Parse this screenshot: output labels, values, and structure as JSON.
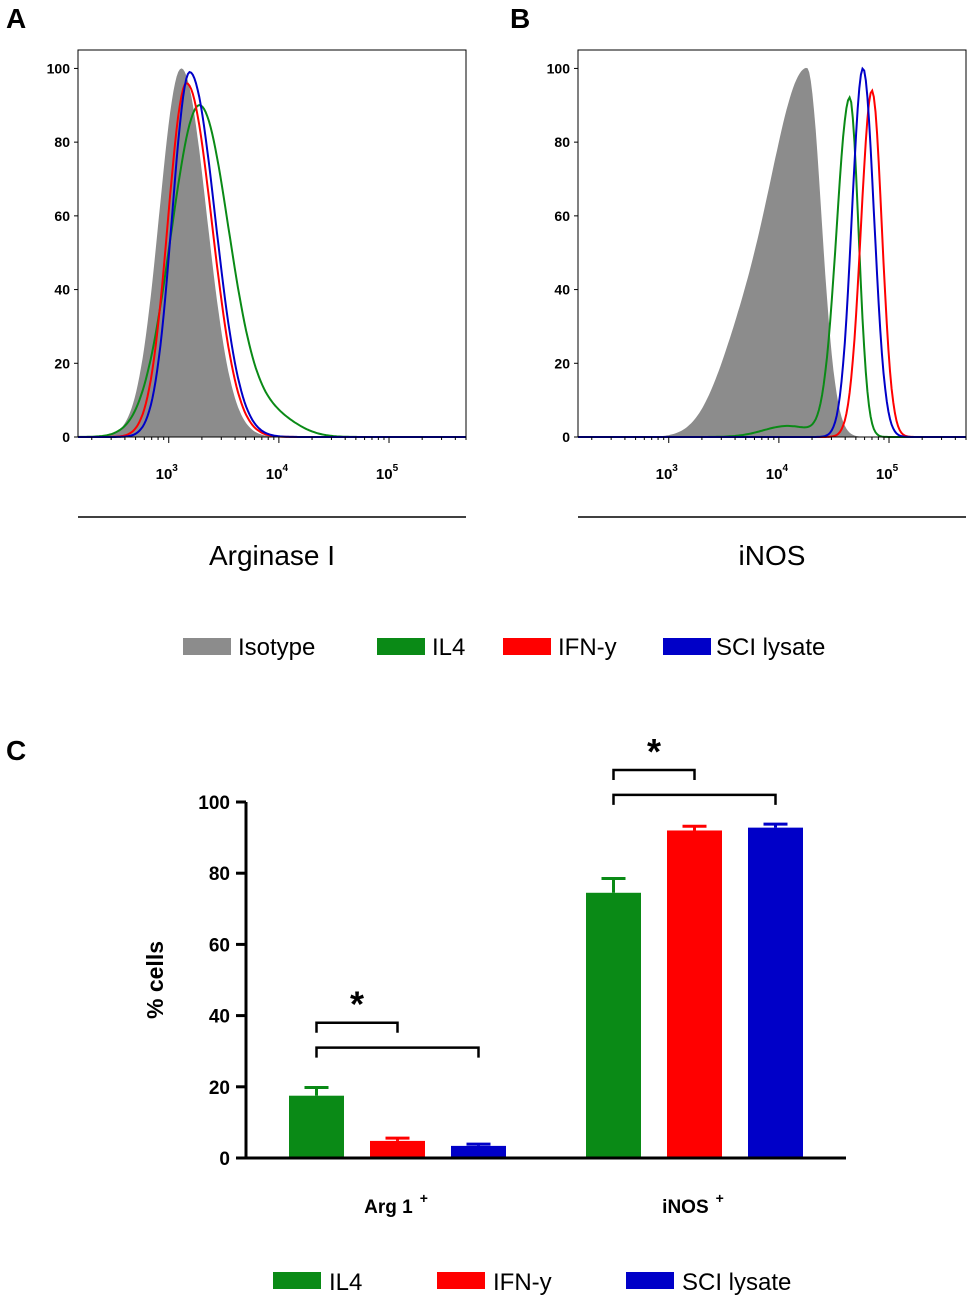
{
  "colors": {
    "isotype": "#8c8c8c",
    "il4": "#0a8a16",
    "ifn": "#ff0000",
    "sci": "#0000c8",
    "axis": "#000000"
  },
  "panels": {
    "a": {
      "letter": "A",
      "xlabel": "Arginase I"
    },
    "b": {
      "letter": "B",
      "xlabel": "iNOS"
    },
    "c": {
      "letter": "C"
    }
  },
  "histogram_legend": [
    {
      "key": "isotype",
      "label": "Isotype",
      "color": "#8c8c8c"
    },
    {
      "key": "il4",
      "label": "IL4",
      "color": "#0a8a16"
    },
    {
      "key": "ifn",
      "label": "IFN-y",
      "color": "#ff0000"
    },
    {
      "key": "sci",
      "label": "SCI lysate",
      "color": "#0000c8"
    }
  ],
  "bar_legend": [
    {
      "key": "il4",
      "label": "IL4",
      "color": "#0a8a16"
    },
    {
      "key": "ifn",
      "label": "IFN-y",
      "color": "#ff0000"
    },
    {
      "key": "sci",
      "label": "SCI lysate",
      "color": "#0000c8"
    }
  ],
  "chart_data": [
    {
      "panel": "A",
      "type": "area",
      "title": "",
      "xlabel": "Arginase I",
      "ylabel": "",
      "xscale": "log",
      "xlim": [
        150,
        500000
      ],
      "ylim": [
        0,
        105
      ],
      "yticks": [
        "0",
        "20",
        "40",
        "60",
        "80",
        "100"
      ],
      "xticks": [
        {
          "base": "10",
          "exp": "3",
          "value": 1000
        },
        {
          "base": "10",
          "exp": "4",
          "value": 10000
        },
        {
          "base": "10",
          "exp": "5",
          "value": 100000
        }
      ],
      "series": [
        {
          "name": "Isotype",
          "key": "isotype",
          "fill": true,
          "peak_x": 1300,
          "peak_y": 100,
          "spread_left": 0.2,
          "spread_right": 0.23
        },
        {
          "name": "IL4",
          "key": "il4",
          "fill": false,
          "peak_x": 1900,
          "peak_y": 90,
          "spread_left": 0.26,
          "spread_right": 0.27,
          "tail_x": 9000,
          "tail_y": 5
        },
        {
          "name": "IFN-y",
          "key": "ifn",
          "fill": false,
          "peak_x": 1450,
          "peak_y": 96,
          "spread_left": 0.17,
          "spread_right": 0.23
        },
        {
          "name": "SCI lysate",
          "key": "sci",
          "fill": false,
          "peak_x": 1550,
          "peak_y": 99,
          "spread_left": 0.16,
          "spread_right": 0.23
        }
      ]
    },
    {
      "panel": "B",
      "type": "area",
      "title": "",
      "xlabel": "iNOS",
      "ylabel": "",
      "xscale": "log",
      "xlim": [
        150,
        500000
      ],
      "ylim": [
        0,
        105
      ],
      "yticks": [
        "0",
        "20",
        "40",
        "60",
        "80",
        "100"
      ],
      "xticks": [
        {
          "base": "10",
          "exp": "3",
          "value": 1000
        },
        {
          "base": "10",
          "exp": "4",
          "value": 10000
        },
        {
          "base": "10",
          "exp": "5",
          "value": 100000
        }
      ],
      "series": [
        {
          "name": "Isotype",
          "key": "isotype",
          "fill": true,
          "peak_x": 18000,
          "peak_y": 100,
          "spread_left": 0.36,
          "spread_right": 0.13,
          "tail_x": 4000,
          "tail_y": 12
        },
        {
          "name": "IL4",
          "key": "il4",
          "fill": false,
          "peak_x": 44000,
          "peak_y": 92,
          "spread_left": 0.12,
          "spread_right": 0.08,
          "tail_x": 12000,
          "tail_y": 3
        },
        {
          "name": "IFN-y",
          "key": "ifn",
          "fill": false,
          "peak_x": 70000,
          "peak_y": 94,
          "spread_left": 0.1,
          "spread_right": 0.09
        },
        {
          "name": "SCI lysate",
          "key": "sci",
          "fill": false,
          "peak_x": 58000,
          "peak_y": 100,
          "spread_left": 0.1,
          "spread_right": 0.1
        }
      ]
    },
    {
      "panel": "C",
      "type": "bar",
      "title": "",
      "xlabel": "",
      "ylabel": "% cells",
      "ylim": [
        0,
        100
      ],
      "yticks": [
        "0",
        "20",
        "40",
        "60",
        "80",
        "100"
      ],
      "categories": [
        {
          "label": "Arg 1",
          "sup": "+"
        },
        {
          "label": "iNOS",
          "sup": "+"
        }
      ],
      "series": [
        {
          "name": "IL4",
          "key": "il4",
          "values": [
            17.5,
            74.5
          ],
          "errors": [
            2.3,
            4.0
          ]
        },
        {
          "name": "IFN-y",
          "key": "ifn",
          "values": [
            4.8,
            92
          ],
          "errors": [
            0.8,
            1.2
          ]
        },
        {
          "name": "SCI lysate",
          "key": "sci",
          "values": [
            3.4,
            92.8
          ],
          "errors": [
            0.5,
            1.0
          ]
        }
      ],
      "significance": [
        {
          "category": 0,
          "from_series": 0,
          "to_series": 1,
          "level": 38,
          "label": "*"
        },
        {
          "category": 0,
          "from_series": 0,
          "to_series": 2,
          "level": 31,
          "label": ""
        },
        {
          "category": 1,
          "from_series": 0,
          "to_series": 1,
          "level": 109,
          "label": "*"
        },
        {
          "category": 1,
          "from_series": 0,
          "to_series": 2,
          "level": 102,
          "label": ""
        }
      ]
    }
  ]
}
